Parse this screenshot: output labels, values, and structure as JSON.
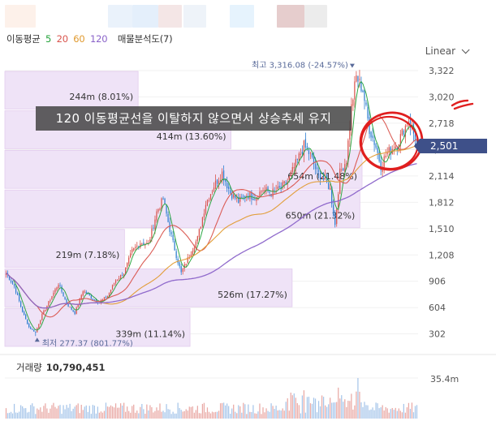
{
  "legend": {
    "ma_title": "이동평균",
    "ma_periods": [
      "5",
      "20",
      "60",
      "120"
    ],
    "vp_title": "매물분석도(7)"
  },
  "scale_select": {
    "label": "Linear",
    "icon": "chevron-down-icon"
  },
  "annotation": "120 이동평균선을 이탈하지 않으면서 상승추세 유지",
  "current_price": "2,501",
  "high_label": "최고 3,316.08 (-24.57%)",
  "low_label": "최저 277.37 (801.77%)",
  "volume": {
    "label": "거래량",
    "value": "10,790,451",
    "max_label": "35.4m"
  },
  "colors": {
    "up": "#d9544d",
    "down": "#2f7fd1",
    "ma5": "#25a33b",
    "ma20": "#d9544d",
    "ma60": "#e09a2f",
    "ma120": "#8a63c9",
    "profile": "#efe3f7",
    "price_tag": "#3e5089",
    "highlight_circle": "#e01f1f"
  },
  "chart_data": {
    "type": "candlestick",
    "title": "",
    "price_axis": {
      "ticks": [
        3322,
        3020,
        2718,
        2416,
        2114,
        1812,
        1510,
        1208,
        906,
        604,
        302
      ],
      "tick_labels": [
        "3,322",
        "3,020",
        "2,718",
        "2,416",
        "2,114",
        "1,812",
        "1,510",
        "1,208",
        "906",
        "604",
        "302"
      ],
      "ylim": [
        150,
        3480
      ],
      "scale": "linear"
    },
    "high": 3316.08,
    "low": 277.37,
    "last": 2501,
    "close_path": [
      [
        0,
        1000
      ],
      [
        5,
        850
      ],
      [
        10,
        560
      ],
      [
        14,
        380
      ],
      [
        18,
        320
      ],
      [
        22,
        520
      ],
      [
        27,
        700
      ],
      [
        32,
        880
      ],
      [
        37,
        650
      ],
      [
        42,
        540
      ],
      [
        47,
        800
      ],
      [
        52,
        720
      ],
      [
        57,
        660
      ],
      [
        62,
        740
      ],
      [
        67,
        920
      ],
      [
        72,
        1000
      ],
      [
        77,
        1250
      ],
      [
        82,
        1350
      ],
      [
        87,
        1330
      ],
      [
        92,
        1700
      ],
      [
        96,
        1850
      ],
      [
        100,
        1500
      ],
      [
        104,
        1200
      ],
      [
        107,
        1000
      ],
      [
        112,
        1200
      ],
      [
        117,
        1400
      ],
      [
        122,
        1800
      ],
      [
        127,
        2000
      ],
      [
        132,
        2150
      ],
      [
        137,
        1920
      ],
      [
        142,
        1820
      ],
      [
        147,
        1900
      ],
      [
        152,
        1870
      ],
      [
        157,
        1960
      ],
      [
        162,
        1920
      ],
      [
        167,
        1960
      ],
      [
        172,
        2050
      ],
      [
        177,
        2250
      ],
      [
        182,
        2460
      ],
      [
        186,
        2350
      ],
      [
        190,
        2150
      ],
      [
        194,
        2100
      ],
      [
        198,
        1960
      ],
      [
        201,
        1550
      ],
      [
        204,
        2150
      ],
      [
        208,
        2300
      ],
      [
        211,
        2900
      ],
      [
        214,
        3250
      ],
      [
        218,
        3100
      ],
      [
        222,
        2650
      ],
      [
        226,
        2450
      ],
      [
        229,
        2230
      ],
      [
        232,
        2350
      ],
      [
        235,
        2420
      ],
      [
        239,
        2480
      ],
      [
        243,
        2650
      ],
      [
        246,
        2760
      ],
      [
        249,
        2600
      ],
      [
        251,
        2501
      ]
    ],
    "volume_profile": [
      {
        "label": "244m (8.01%)",
        "value_m": 244,
        "share_pct": 8.01,
        "price_low": 2871,
        "price_high": 3322
      },
      {
        "label": "414m (13.60%)",
        "value_m": 414,
        "share_pct": 13.6,
        "price_low": 2416,
        "price_high": 2871
      },
      {
        "label": "654m (21.48%)",
        "value_m": 654,
        "share_pct": 21.48,
        "price_low": 1962,
        "price_high": 2416
      },
      {
        "label": "650m (21.32%)",
        "value_m": 650,
        "share_pct": 21.32,
        "price_low": 1510,
        "price_high": 1962
      },
      {
        "label": "219m (7.18%)",
        "value_m": 219,
        "share_pct": 7.18,
        "price_low": 1057,
        "price_high": 1510
      },
      {
        "label": "526m (17.27%)",
        "value_m": 526,
        "share_pct": 17.27,
        "price_low": 604,
        "price_high": 1057
      },
      {
        "label": "339m (11.14%)",
        "value_m": 339,
        "share_pct": 11.14,
        "price_low": 150,
        "price_high": 604
      }
    ],
    "volume_axis": {
      "max": 35.4,
      "unit": "m",
      "label": "35.4m"
    }
  }
}
